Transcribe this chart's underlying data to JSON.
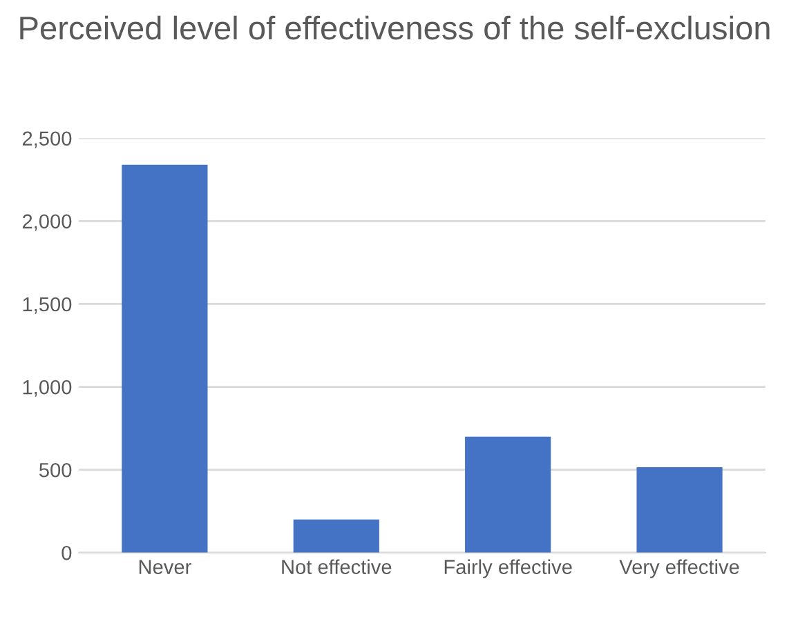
{
  "chart_data": {
    "type": "bar",
    "title": "Perceived level of effectiveness of the self-exclusion",
    "categories": [
      "Never",
      "Not effective",
      "Fairly effective",
      "Very effective"
    ],
    "values": [
      2340,
      200,
      700,
      515
    ],
    "color": "#4472c4",
    "ylim": [
      0,
      2500
    ],
    "yticks": [
      0,
      {
        "value": 500,
        "label": "500"
      },
      {
        "value": 1000,
        "label": "1,000"
      },
      {
        "value": 1500,
        "label": "1,500"
      },
      {
        "value": 2000,
        "label": "2,000"
      },
      {
        "value": 2500,
        "label": "2,500"
      }
    ],
    "grid": "y"
  }
}
